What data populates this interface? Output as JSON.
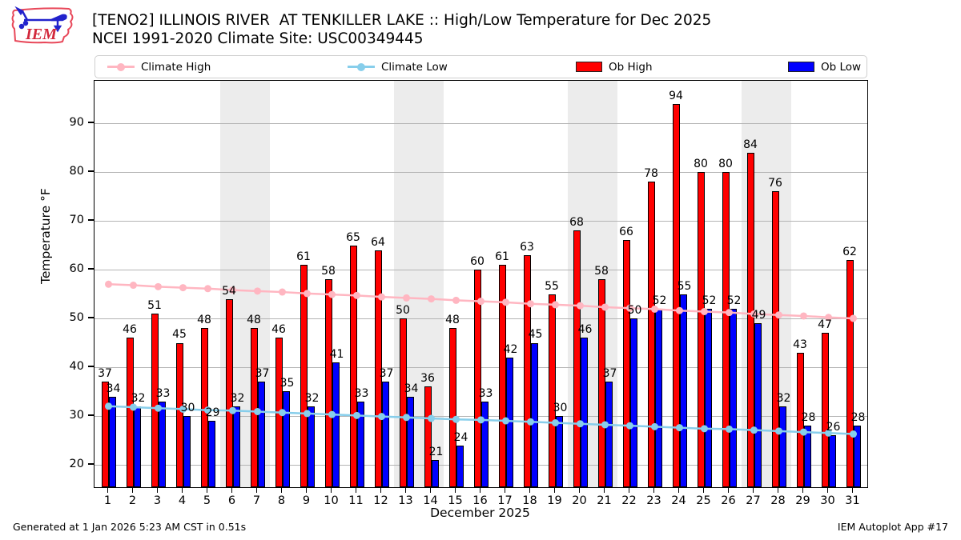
{
  "header": {
    "title": "[TENO2] ILLINOIS RIVER  AT TENKILLER LAKE :: High/Low Temperature for Dec 2025",
    "subtitle": "NCEI 1991-2020 Climate Site: USC00349445",
    "logo_text": "IEM"
  },
  "legend": {
    "items": [
      {
        "label": "Climate High",
        "type": "line",
        "color": "#ffb6c1"
      },
      {
        "label": "Climate Low",
        "type": "line",
        "color": "#87ceeb"
      },
      {
        "label": "Ob High",
        "type": "patch",
        "color": "#ff0000"
      },
      {
        "label": "Ob Low",
        "type": "patch",
        "color": "#0000ff"
      }
    ]
  },
  "chart_data": {
    "type": "bar",
    "title": "[TENO2] ILLINOIS RIVER  AT TENKILLER LAKE :: High/Low Temperature for Dec 2025",
    "subtitle": "NCEI 1991-2020 Climate Site: USC00349445",
    "xlabel": "December 2025",
    "ylabel": "Temperature °F",
    "x": [
      1,
      2,
      3,
      4,
      5,
      6,
      7,
      8,
      9,
      10,
      11,
      12,
      13,
      14,
      15,
      16,
      17,
      18,
      19,
      20,
      21,
      22,
      23,
      24,
      25,
      26,
      27,
      28,
      29,
      30,
      31
    ],
    "series": [
      {
        "name": "Ob High",
        "type": "bar",
        "color": "#ff0000",
        "values": [
          37,
          46,
          51,
          45,
          48,
          54,
          48,
          46,
          61,
          58,
          65,
          64,
          50,
          36,
          48,
          60,
          61,
          63,
          55,
          68,
          58,
          66,
          78,
          94,
          80,
          80,
          84,
          76,
          43,
          47,
          62
        ]
      },
      {
        "name": "Ob Low",
        "type": "bar",
        "color": "#0000ff",
        "values": [
          34,
          32,
          33,
          30,
          29,
          32,
          37,
          35,
          32,
          41,
          33,
          37,
          34,
          21,
          24,
          33,
          42,
          45,
          30,
          46,
          37,
          50,
          52,
          55,
          52,
          52,
          49,
          32,
          28,
          26,
          28
        ]
      },
      {
        "name": "Climate High",
        "type": "line",
        "color": "#ffb6c1",
        "values": [
          57.0,
          56.8,
          56.5,
          56.3,
          56.1,
          55.8,
          55.6,
          55.4,
          55.1,
          54.9,
          54.7,
          54.4,
          54.2,
          54.0,
          53.7,
          53.5,
          53.3,
          53.0,
          52.8,
          52.6,
          52.3,
          52.1,
          51.9,
          51.6,
          51.4,
          51.2,
          50.9,
          50.7,
          50.5,
          50.2,
          50.0
        ]
      },
      {
        "name": "Climate Low",
        "type": "line",
        "color": "#87ceeb",
        "values": [
          32.0,
          31.8,
          31.6,
          31.4,
          31.2,
          31.1,
          30.9,
          30.7,
          30.5,
          30.3,
          30.1,
          29.9,
          29.7,
          29.5,
          29.3,
          29.2,
          29.0,
          28.8,
          28.6,
          28.4,
          28.2,
          28.0,
          27.8,
          27.6,
          27.4,
          27.3,
          27.1,
          26.9,
          26.7,
          26.5,
          26.3
        ]
      }
    ],
    "yticks": [
      20,
      30,
      40,
      50,
      60,
      70,
      80,
      90
    ],
    "ylim": [
      15.4,
      98.7
    ],
    "grid": "horizontal",
    "gridline_color": "#b4b4b4",
    "weekend_bands": [
      [
        5.5,
        7.5
      ],
      [
        12.5,
        14.5
      ],
      [
        19.5,
        21.5
      ],
      [
        26.5,
        28.5
      ]
    ],
    "band_color": "#ececec",
    "legend_position": "top"
  },
  "footer": {
    "left": "Generated at 1 Jan 2026 5:23 AM CST in 0.51s",
    "right": "IEM Autoplot App #17"
  }
}
